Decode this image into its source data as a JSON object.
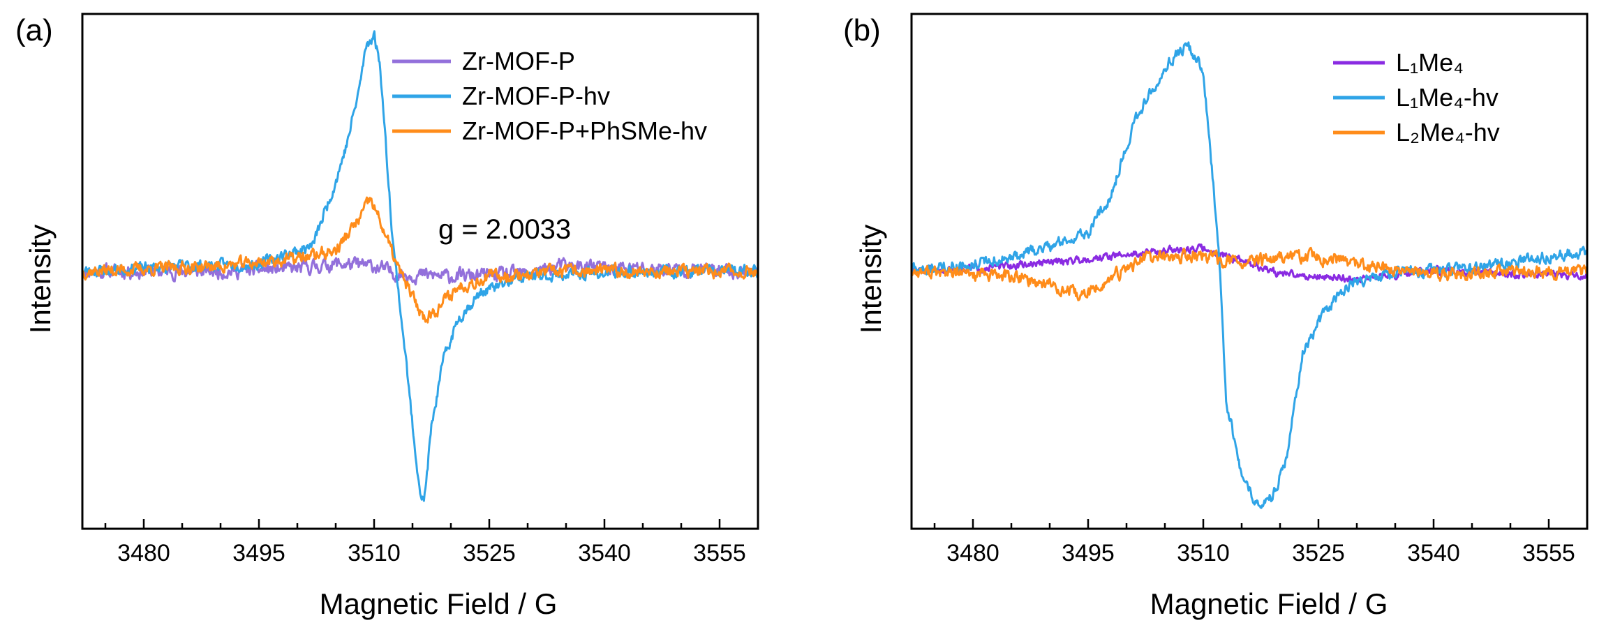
{
  "chart_data": [
    {
      "type": "line",
      "panel_label": "(a)",
      "title": "",
      "xlabel": "Magnetic Field / G",
      "ylabel": "Intensity",
      "xlim": [
        3472,
        3560
      ],
      "ylim": [
        -1.0,
        1.0
      ],
      "xticks": [
        3480,
        3495,
        3510,
        3525,
        3540,
        3555
      ],
      "x_minor_step": 5,
      "grid": false,
      "legend_position": "top-right",
      "annotation": "g = 2.0033",
      "series": [
        {
          "name": "Zr-MOF-P",
          "color": "#9370DB",
          "noise": 0.022,
          "seed": 11,
          "points": [
            [
              3472,
              0.0
            ],
            [
              3490,
              0.0
            ],
            [
              3500,
              0.01
            ],
            [
              3505,
              0.03
            ],
            [
              3510,
              0.02
            ],
            [
              3513,
              -0.01
            ],
            [
              3520,
              -0.02
            ],
            [
              3530,
              -0.01
            ],
            [
              3534,
              0.02
            ],
            [
              3545,
              0.01
            ],
            [
              3560,
              0.0
            ]
          ]
        },
        {
          "name": "Zr-MOF-P-hv",
          "color": "#2FA4E7",
          "noise": 0.018,
          "seed": 23,
          "points": [
            [
              3472,
              0.0
            ],
            [
              3485,
              0.02
            ],
            [
              3495,
              0.03
            ],
            [
              3502,
              0.1
            ],
            [
              3505,
              0.35
            ],
            [
              3506.5,
              0.5
            ],
            [
              3508,
              0.7
            ],
            [
              3509,
              0.88
            ],
            [
              3510,
              0.92
            ],
            [
              3510.8,
              0.8
            ],
            [
              3511.5,
              0.5
            ],
            [
              3512.5,
              0.1
            ],
            [
              3514,
              -0.3
            ],
            [
              3515,
              -0.6
            ],
            [
              3516,
              -0.85
            ],
            [
              3516.5,
              -0.9
            ],
            [
              3517.5,
              -0.6
            ],
            [
              3519,
              -0.35
            ],
            [
              3521,
              -0.18
            ],
            [
              3524,
              -0.08
            ],
            [
              3530,
              -0.02
            ],
            [
              3545,
              0.0
            ],
            [
              3560,
              0.0
            ]
          ]
        },
        {
          "name": "Zr-MOF-P+PhSMe-hv",
          "color": "#FF8C1A",
          "noise": 0.02,
          "seed": 37,
          "points": [
            [
              3472,
              0.0
            ],
            [
              3490,
              0.02
            ],
            [
              3500,
              0.05
            ],
            [
              3505,
              0.08
            ],
            [
              3508,
              0.2
            ],
            [
              3509.5,
              0.28
            ],
            [
              3511,
              0.18
            ],
            [
              3513,
              0.02
            ],
            [
              3515,
              -0.1
            ],
            [
              3516.5,
              -0.18
            ],
            [
              3518,
              -0.15
            ],
            [
              3521,
              -0.06
            ],
            [
              3525,
              -0.02
            ],
            [
              3535,
              0.0
            ],
            [
              3560,
              0.0
            ]
          ]
        }
      ]
    },
    {
      "type": "line",
      "panel_label": "(b)",
      "title": "",
      "xlabel": "Magnetic Field / G",
      "ylabel": "Intensity",
      "xlim": [
        3472,
        3560
      ],
      "ylim": [
        -1.0,
        1.0
      ],
      "xticks": [
        3480,
        3495,
        3510,
        3525,
        3540,
        3555
      ],
      "x_minor_step": 5,
      "grid": false,
      "legend_position": "top-right",
      "series": [
        {
          "name": "L₁Me₄",
          "color": "#8A2BE2",
          "noise": 0.012,
          "seed": 51,
          "points": [
            [
              3472,
              0.0
            ],
            [
              3485,
              0.02
            ],
            [
              3495,
              0.05
            ],
            [
              3505,
              0.08
            ],
            [
              3510,
              0.09
            ],
            [
              3515,
              0.04
            ],
            [
              3520,
              -0.01
            ],
            [
              3530,
              -0.03
            ],
            [
              3540,
              0.0
            ],
            [
              3550,
              -0.01
            ],
            [
              3560,
              -0.02
            ]
          ]
        },
        {
          "name": "L₁Me₄-hv",
          "color": "#2FA4E7",
          "noise": 0.018,
          "seed": 63,
          "points": [
            [
              3472,
              0.0
            ],
            [
              3485,
              0.05
            ],
            [
              3490,
              0.1
            ],
            [
              3495,
              0.15
            ],
            [
              3498,
              0.3
            ],
            [
              3501,
              0.58
            ],
            [
              3505,
              0.8
            ],
            [
              3508,
              0.88
            ],
            [
              3510,
              0.78
            ],
            [
              3512,
              0.1
            ],
            [
              3513,
              -0.5
            ],
            [
              3515,
              -0.8
            ],
            [
              3517,
              -0.9
            ],
            [
              3519,
              -0.88
            ],
            [
              3521,
              -0.7
            ],
            [
              3523,
              -0.3
            ],
            [
              3526,
              -0.15
            ],
            [
              3529,
              -0.05
            ],
            [
              3535,
              0.0
            ],
            [
              3545,
              0.01
            ],
            [
              3560,
              0.08
            ]
          ]
        },
        {
          "name": "L₂Me₄-hv",
          "color": "#FF8C1A",
          "noise": 0.02,
          "seed": 77,
          "points": [
            [
              3472,
              0.0
            ],
            [
              3485,
              -0.02
            ],
            [
              3490,
              -0.05
            ],
            [
              3494,
              -0.1
            ],
            [
              3497,
              -0.05
            ],
            [
              3502,
              0.05
            ],
            [
              3510,
              0.06
            ],
            [
              3515,
              0.03
            ],
            [
              3522,
              0.06
            ],
            [
              3528,
              0.04
            ],
            [
              3535,
              0.0
            ],
            [
              3545,
              -0.01
            ],
            [
              3560,
              0.0
            ]
          ]
        }
      ]
    }
  ]
}
